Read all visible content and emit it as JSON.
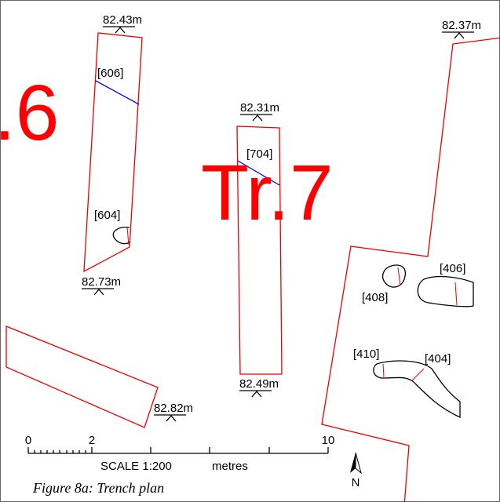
{
  "labels": {
    "trench_6": ".6",
    "trench_7": "Tr.7"
  },
  "levels": [
    "82.43m",
    "82.37m",
    "82.31m",
    "82.73m",
    "82.49m",
    "82.82m"
  ],
  "features": [
    "[606]",
    "[704]",
    "[604]",
    "[406]",
    "[408]",
    "[410]",
    "[404]"
  ],
  "scale": {
    "ticks": [
      "0",
      "2",
      "10"
    ],
    "title": "SCALE 1:200",
    "unit": "metres"
  },
  "north": "N",
  "caption": "Figure 8a: Trench plan"
}
